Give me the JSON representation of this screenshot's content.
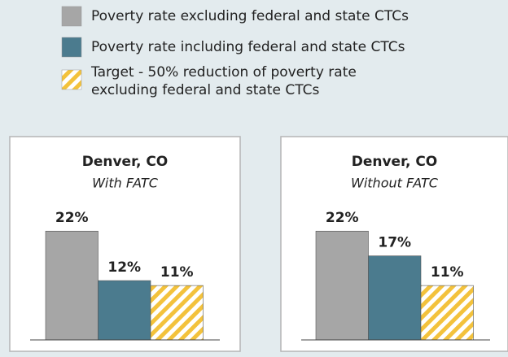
{
  "legend": [
    {
      "lines": [
        "Poverty rate excluding federal and state CTCs"
      ],
      "color": "#a6a6a6",
      "hatched": false
    },
    {
      "lines": [
        "Poverty rate including federal and state CTCs"
      ],
      "color": "#4b7b8e",
      "hatched": false
    },
    {
      "lines": [
        "Target - 50% reduction of poverty rate",
        "excluding federal and state CTCs"
      ],
      "color": "#f3c23c",
      "hatched": true
    }
  ],
  "chart_data": [
    {
      "type": "bar",
      "title": "Denver, CO",
      "subtitle": "With FATC",
      "values": [
        22,
        12,
        11
      ],
      "value_labels": [
        "22%",
        "12%",
        "11%"
      ],
      "colors": [
        "#a6a6a6",
        "#4b7b8e",
        "#f3c23c"
      ],
      "hatched": [
        false,
        false,
        true
      ],
      "ylim": [
        0,
        25
      ]
    },
    {
      "type": "bar",
      "title": "Denver, CO",
      "subtitle": "Without FATC",
      "values": [
        22,
        17,
        11
      ],
      "value_labels": [
        "22%",
        "17%",
        "11%"
      ],
      "colors": [
        "#a6a6a6",
        "#4b7b8e",
        "#f3c23c"
      ],
      "hatched": [
        false,
        false,
        true
      ],
      "ylim": [
        0,
        25
      ]
    }
  ]
}
